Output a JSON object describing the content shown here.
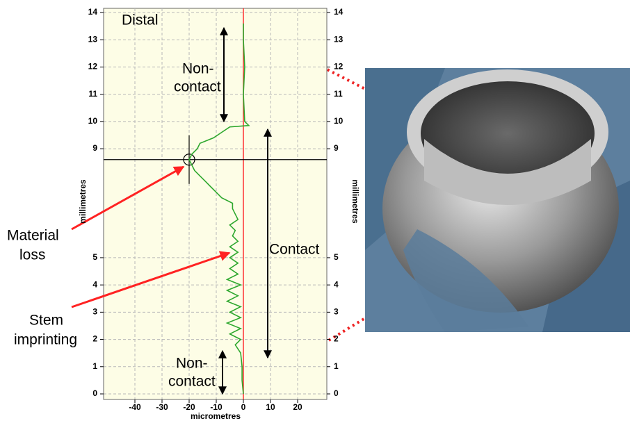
{
  "chart_data": {
    "type": "line",
    "xlabel": "micrometres",
    "ylabel": "millimetres",
    "y2label": "millimetres",
    "xlim": [
      -50,
      30
    ],
    "xticks": [
      -40,
      -30,
      -20,
      -10,
      0,
      10,
      20
    ],
    "ylim": [
      0,
      14
    ],
    "yticks": [
      0,
      1,
      2,
      3,
      4,
      5,
      9,
      10,
      11,
      12,
      13,
      14
    ],
    "grid": true,
    "reference_x": 0,
    "reference_color": "#ff3030",
    "marker": {
      "x": -20,
      "y": 8.6
    },
    "series": [
      {
        "color": "#2ea82e",
        "x": [
          0,
          -0.5,
          -0.5,
          -1,
          -3,
          -1,
          -5,
          -1,
          -6,
          -1,
          -5,
          -1,
          -6,
          -2,
          -6,
          -1,
          -6,
          -2,
          -5,
          -2,
          -5,
          -2,
          -5,
          -2,
          -4,
          -3,
          -5,
          -2,
          -3,
          -4,
          -4,
          -8,
          -10,
          -12,
          -14,
          -16,
          -18,
          -19,
          -20,
          -19,
          -17,
          -16,
          -11,
          -8,
          -5,
          2,
          0.5,
          0,
          0.5,
          0,
          0
        ],
        "values": [
          0,
          0.5,
          1.0,
          1.5,
          1.8,
          2.0,
          2.2,
          2.4,
          2.6,
          2.8,
          3.0,
          3.2,
          3.4,
          3.6,
          3.8,
          4.0,
          4.2,
          4.4,
          4.6,
          4.8,
          5.0,
          5.2,
          5.4,
          5.6,
          5.8,
          6.0,
          6.2,
          6.4,
          6.6,
          6.8,
          7.0,
          7.2,
          7.4,
          7.6,
          7.8,
          8.0,
          8.2,
          8.4,
          8.6,
          8.8,
          9.0,
          9.2,
          9.4,
          9.6,
          9.8,
          9.85,
          10.0,
          11,
          12,
          13,
          13.6
        ]
      }
    ],
    "annotations": {
      "distal": "Distal",
      "top_noncontact": [
        "Non-",
        "contact"
      ],
      "contact": "Contact",
      "bottom_noncontact": [
        "Non-",
        "contact"
      ],
      "material_loss": [
        "Material",
        "loss"
      ],
      "stem_imprinting": [
        "Stem",
        "imprinting"
      ]
    }
  }
}
